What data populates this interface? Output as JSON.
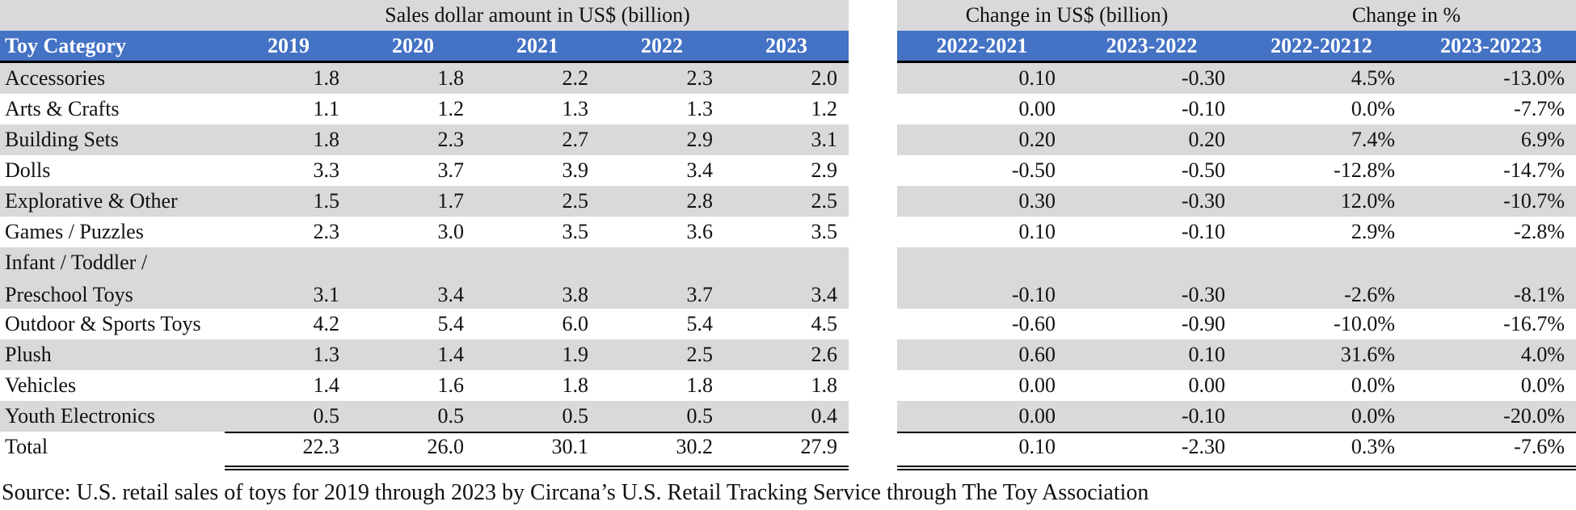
{
  "left": {
    "super_title": "Sales dollar amount in US$ (billion)",
    "headers": [
      "Toy Category",
      "2019",
      "2020",
      "2021",
      "2022",
      "2023"
    ]
  },
  "right": {
    "super_title_1": "Change in US$ (billion)",
    "super_title_2": "Change in %",
    "headers": [
      "2022-2021",
      "2023-2022",
      "2022-20212",
      "2023-20223"
    ]
  },
  "rows": [
    {
      "label": "Accessories",
      "values": [
        "1.8",
        "1.8",
        "2.2",
        "2.3",
        "2.0"
      ],
      "changes": [
        "0.10",
        "-0.30",
        "4.5%",
        "-13.0%"
      ]
    },
    {
      "label": "Arts & Crafts",
      "values": [
        "1.1",
        "1.2",
        "1.3",
        "1.3",
        "1.2"
      ],
      "changes": [
        "0.00",
        "-0.10",
        "0.0%",
        "-7.7%"
      ]
    },
    {
      "label": "Building Sets",
      "values": [
        "1.8",
        "2.3",
        "2.7",
        "2.9",
        "3.1"
      ],
      "changes": [
        "0.20",
        "0.20",
        "7.4%",
        "6.9%"
      ]
    },
    {
      "label": "Dolls",
      "values": [
        "3.3",
        "3.7",
        "3.9",
        "3.4",
        "2.9"
      ],
      "changes": [
        "-0.50",
        "-0.50",
        "-12.8%",
        "-14.7%"
      ]
    },
    {
      "label": "Explorative & Other",
      "values": [
        "1.5",
        "1.7",
        "2.5",
        "2.8",
        "2.5"
      ],
      "changes": [
        "0.30",
        "-0.30",
        "12.0%",
        "-10.7%"
      ]
    },
    {
      "label": "Games / Puzzles",
      "values": [
        "2.3",
        "3.0",
        "3.5",
        "3.6",
        "3.5"
      ],
      "changes": [
        "0.10",
        "-0.10",
        "2.9%",
        "-2.8%"
      ]
    },
    {
      "label_line1": "Infant / Toddler /",
      "label_line2": "Preschool Toys",
      "values": [
        "3.1",
        "3.4",
        "3.8",
        "3.7",
        "3.4"
      ],
      "changes": [
        "-0.10",
        "-0.30",
        "-2.6%",
        "-8.1%"
      ]
    },
    {
      "label": "Outdoor & Sports Toys",
      "values": [
        "4.2",
        "5.4",
        "6.0",
        "5.4",
        "4.5"
      ],
      "changes": [
        "-0.60",
        "-0.90",
        "-10.0%",
        "-16.7%"
      ]
    },
    {
      "label": "Plush",
      "values": [
        "1.3",
        "1.4",
        "1.9",
        "2.5",
        "2.6"
      ],
      "changes": [
        "0.60",
        "0.10",
        "31.6%",
        "4.0%"
      ]
    },
    {
      "label": "Vehicles",
      "values": [
        "1.4",
        "1.6",
        "1.8",
        "1.8",
        "1.8"
      ],
      "changes": [
        "0.00",
        "0.00",
        "0.0%",
        "0.0%"
      ]
    },
    {
      "label": "Youth Electronics",
      "values": [
        "0.5",
        "0.5",
        "0.5",
        "0.5",
        "0.4"
      ],
      "changes": [
        "0.00",
        "-0.10",
        "0.0%",
        "-20.0%"
      ]
    }
  ],
  "total": {
    "label": "Total",
    "values": [
      "22.3",
      "26.0",
      "30.1",
      "30.2",
      "27.9"
    ],
    "changes": [
      "0.10",
      "-2.30",
      "0.3%",
      "-7.6%"
    ]
  },
  "source": "Source: U.S. retail sales of toys for 2019 through 2023 by Circana’s U.S. Retail Tracking Service through The Toy Association",
  "colors": {
    "header_bg": "#4472c4",
    "band_grey": "#d9d9db"
  }
}
